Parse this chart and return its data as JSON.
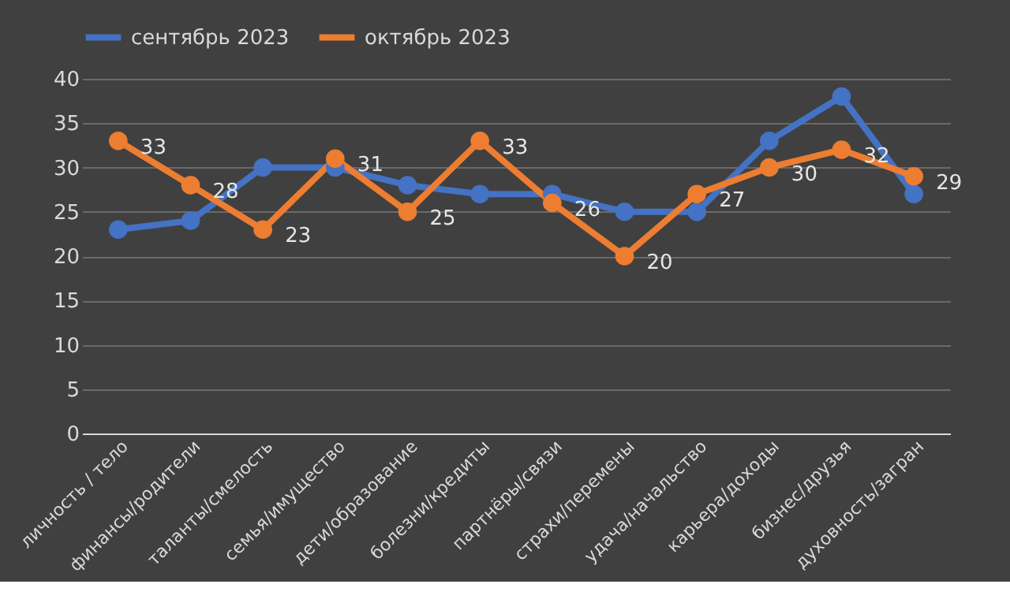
{
  "chart_data": {
    "type": "line",
    "categories": [
      "личность / тело",
      "финансы/родители",
      "таланты/смелость",
      "семья/имущество",
      "дети/образование",
      "болезни/кредиты",
      "партнёры/связи",
      "страхи/перемены",
      "удача/начальство",
      "карьера/доходы",
      "бизнес/друзья",
      "духовность/загран"
    ],
    "series": [
      {
        "name": "сентябрь 2023",
        "color": "#4472c4",
        "values": [
          23,
          24,
          30,
          30,
          28,
          27,
          27,
          25,
          25,
          33,
          38,
          27
        ]
      },
      {
        "name": "октябрь 2023",
        "color": "#ed7d31",
        "values": [
          33,
          28,
          23,
          31,
          25,
          33,
          26,
          20,
          27,
          30,
          32,
          29
        ],
        "value_labels": [
          "33",
          "28",
          "23",
          "31",
          "25",
          "33",
          "26",
          "20",
          "27",
          "30",
          "32",
          "29"
        ]
      }
    ],
    "ylim": [
      0,
      40
    ],
    "yticks": [
      0,
      5,
      10,
      15,
      20,
      25,
      30,
      35,
      40
    ],
    "grid": "y",
    "legend": "top",
    "marker": "circle",
    "line_style": "solid"
  }
}
